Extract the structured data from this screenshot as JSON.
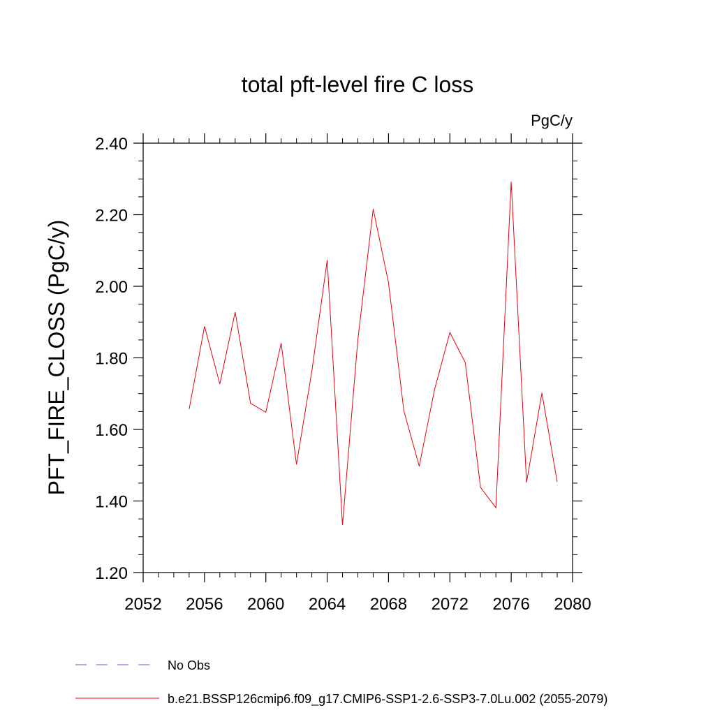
{
  "chart_data": {
    "type": "line",
    "title": "total pft-level fire C loss",
    "units_label": "PgC/y",
    "ylabel": "PFT_FIRE_CLOSS  (PgC/y)",
    "xlabel": "",
    "xlim": [
      2052,
      2080
    ],
    "ylim": [
      1.2,
      2.4
    ],
    "x_ticks": [
      "2052",
      "2056",
      "2060",
      "2064",
      "2068",
      "2072",
      "2076",
      "2080"
    ],
    "x_tick_values": [
      2052,
      2056,
      2060,
      2064,
      2068,
      2072,
      2076,
      2080
    ],
    "y_ticks": [
      "1.20",
      "1.40",
      "1.60",
      "1.80",
      "2.00",
      "2.20",
      "2.40"
    ],
    "y_tick_values": [
      1.2,
      1.4,
      1.6,
      1.8,
      2.0,
      2.2,
      2.4
    ],
    "grid": false,
    "legend_position": "bottom",
    "series": [
      {
        "name": "b.e21.BSSP126cmip6.f09_g17.CMIP6-SSP1-2.6-SSP3-7.0Lu.002 (2055-2079)",
        "color": "#e8000b",
        "style": "solid",
        "x": [
          2055,
          2056,
          2057,
          2058,
          2059,
          2060,
          2061,
          2062,
          2063,
          2064,
          2065,
          2066,
          2067,
          2068,
          2069,
          2070,
          2071,
          2072,
          2073,
          2074,
          2075,
          2076,
          2077,
          2078,
          2079
        ],
        "y": [
          1.657,
          1.888,
          1.727,
          1.928,
          1.673,
          1.648,
          1.841,
          1.502,
          1.763,
          2.073,
          1.333,
          1.851,
          2.216,
          2.01,
          1.652,
          1.497,
          1.711,
          1.871,
          1.787,
          1.438,
          1.381,
          2.292,
          1.452,
          1.702,
          1.453
        ]
      }
    ],
    "legend": [
      {
        "label": "No Obs",
        "color": "#6a5acd",
        "style": "dashed"
      },
      {
        "label": "b.e21.BSSP126cmip6.f09_g17.CMIP6-SSP1-2.6-SSP3-7.0Lu.002 (2055-2079)",
        "color": "#e8000b",
        "style": "solid"
      }
    ]
  }
}
